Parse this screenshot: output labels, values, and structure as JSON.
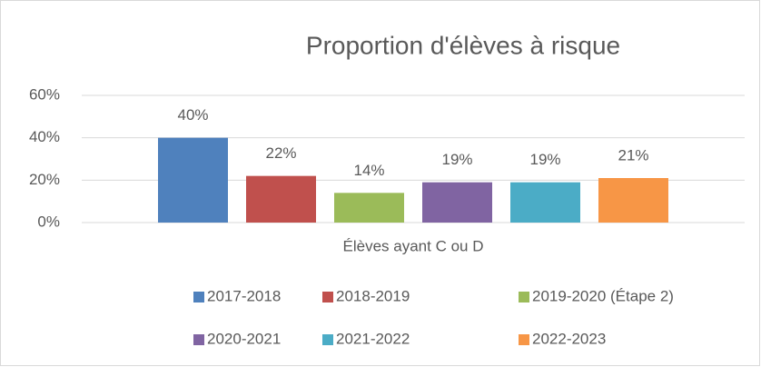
{
  "chart_data": {
    "type": "bar",
    "title": "Proportion d'élèves à risque",
    "categories": [
      "Élèves ayant C ou D"
    ],
    "series": [
      {
        "name": "2017-2018",
        "color": "#4f81bd",
        "values": [
          40
        ],
        "value_labels": [
          "40%"
        ]
      },
      {
        "name": "2018-2019",
        "color": "#c0504d",
        "values": [
          22
        ],
        "value_labels": [
          "22%"
        ]
      },
      {
        "name": "2019-2020 (Étape 2)",
        "color": "#9bbb59",
        "values": [
          14
        ],
        "value_labels": [
          "14%"
        ]
      },
      {
        "name": "2020-2021",
        "color": "#8064a2",
        "values": [
          19
        ],
        "value_labels": [
          "19%"
        ]
      },
      {
        "name": "2021-2022",
        "color": "#4bacc6",
        "values": [
          19
        ],
        "value_labels": [
          "19%"
        ]
      },
      {
        "name": "2022-2023",
        "color": "#f79646",
        "values": [
          21
        ],
        "value_labels": [
          "21%"
        ]
      }
    ],
    "ylim": [
      0,
      60
    ],
    "yticks": [
      {
        "value": 0,
        "label": "0%"
      },
      {
        "value": 20,
        "label": "20%"
      },
      {
        "value": 40,
        "label": "40%"
      },
      {
        "value": 60,
        "label": "60%"
      }
    ],
    "grid": true,
    "legend": "bottom"
  }
}
